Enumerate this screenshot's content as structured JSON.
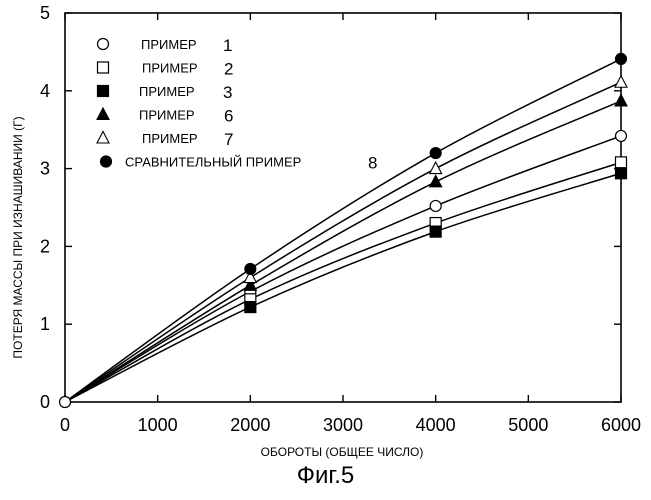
{
  "caption": "Фиг.5",
  "chart_data": {
    "type": "line",
    "xlabel": "ОБОРОТЫ (ОБЩЕЕ ЧИСЛО)",
    "ylabel": "ПОТЕРЯ МАССЫ ПРИ ИЗНАШИВАНИИ (Г)",
    "xlim": [
      0,
      6000
    ],
    "ylim": [
      0,
      5
    ],
    "xticks": [
      0,
      1000,
      2000,
      3000,
      4000,
      5000,
      6000
    ],
    "yticks": [
      0,
      1,
      2,
      3,
      4,
      5
    ],
    "grid": false,
    "legend_position": "top-left",
    "x": [
      0,
      2000,
      4000,
      6000
    ],
    "series": [
      {
        "label": "ПРИМЕР",
        "number": "1",
        "marker": "circle-open",
        "values": [
          0,
          1.42,
          2.52,
          3.42
        ]
      },
      {
        "label": "ПРИМЕР",
        "number": "2",
        "marker": "square-open",
        "values": [
          0,
          1.32,
          2.3,
          3.08
        ]
      },
      {
        "label": "ПРИМЕР",
        "number": "3",
        "marker": "square-filled",
        "values": [
          0,
          1.22,
          2.19,
          2.94
        ]
      },
      {
        "label": "ПРИМЕР",
        "number": "6",
        "marker": "triangle-filled",
        "values": [
          0,
          1.5,
          2.83,
          3.87
        ]
      },
      {
        "label": "ПРИМЕР",
        "number": "7",
        "marker": "triangle-open",
        "values": [
          0,
          1.6,
          3.0,
          4.11
        ]
      },
      {
        "label": "СРАВНИТЕЛЬНЫЙ ПРИМЕР",
        "number": "8",
        "marker": "circle-filled",
        "values": [
          0,
          1.71,
          3.2,
          4.41
        ]
      }
    ]
  }
}
